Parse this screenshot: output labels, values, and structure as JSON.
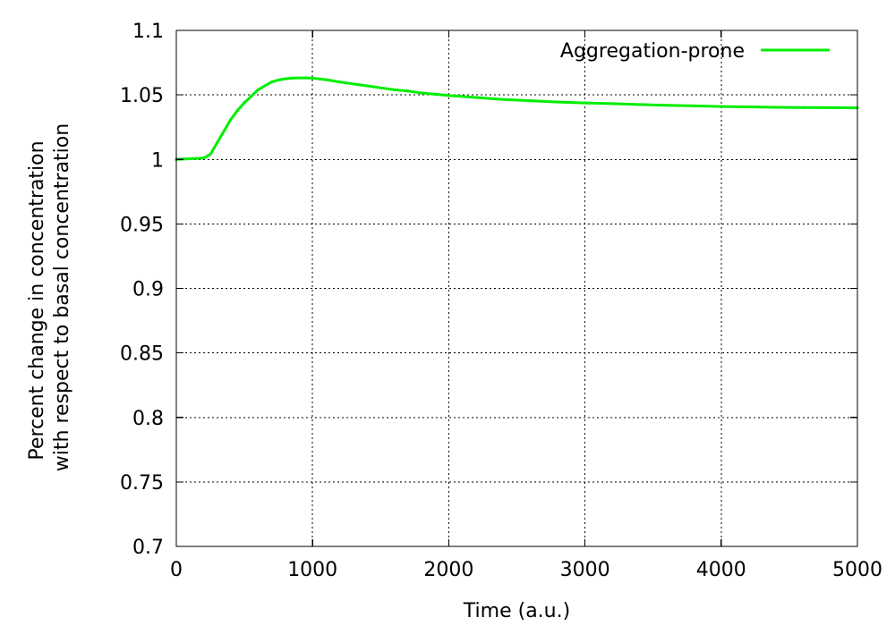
{
  "chart_data": {
    "type": "line",
    "title": "",
    "xlabel": "Time (a.u.)",
    "ylabel": [
      "Percent change in concentration",
      "with respect to basal concentration"
    ],
    "xlim": [
      0,
      5000
    ],
    "ylim": [
      0.7,
      1.1
    ],
    "x_ticks": [
      0,
      1000,
      2000,
      3000,
      4000,
      5000
    ],
    "x_tick_labels": [
      "0",
      "1000",
      "2000",
      "3000",
      "4000",
      "5000"
    ],
    "y_ticks": [
      0.7,
      0.75,
      0.8,
      0.85,
      0.9,
      0.95,
      1.0,
      1.05,
      1.1
    ],
    "y_tick_labels": [
      "0.7",
      "0.75",
      "0.8",
      "0.85",
      "0.9",
      "0.95",
      "1",
      "1.05",
      "1.1"
    ],
    "grid": true,
    "legend_position": "top-right",
    "series": [
      {
        "name": "Aggregation-prone",
        "color": "#00ee00",
        "x": [
          0,
          100,
          200,
          250,
          300,
          350,
          400,
          450,
          500,
          550,
          600,
          650,
          700,
          750,
          800,
          850,
          900,
          950,
          1000,
          1100,
          1200,
          1300,
          1400,
          1500,
          1600,
          1700,
          1800,
          1900,
          2000,
          2200,
          2400,
          2600,
          2800,
          3000,
          3200,
          3400,
          3600,
          3800,
          4000,
          4200,
          4400,
          4600,
          4800,
          5000
        ],
        "y": [
          1.0,
          1.0005,
          1.001,
          1.004,
          1.013,
          1.022,
          1.031,
          1.038,
          1.044,
          1.049,
          1.054,
          1.057,
          1.06,
          1.0615,
          1.0625,
          1.063,
          1.0632,
          1.0632,
          1.063,
          1.0618,
          1.06,
          1.0585,
          1.057,
          1.0555,
          1.054,
          1.053,
          1.0515,
          1.0505,
          1.0495,
          1.048,
          1.0465,
          1.0455,
          1.0445,
          1.0438,
          1.0432,
          1.0425,
          1.042,
          1.0415,
          1.041,
          1.0407,
          1.0404,
          1.0402,
          1.0401,
          1.04
        ]
      }
    ]
  }
}
